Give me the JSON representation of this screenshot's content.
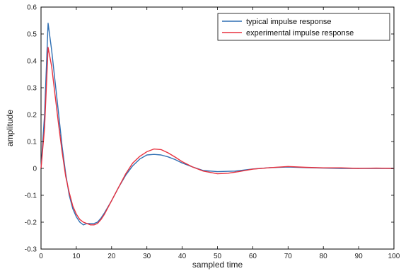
{
  "chart_data": {
    "type": "line",
    "title": "",
    "xlabel": "sampled time",
    "ylabel": "amplitude",
    "xlim": [
      0,
      100
    ],
    "ylim": [
      -0.3,
      0.6
    ],
    "xticks": [
      0,
      10,
      20,
      30,
      40,
      50,
      60,
      70,
      80,
      90,
      100
    ],
    "yticks": [
      -0.3,
      -0.2,
      -0.1,
      0,
      0.1,
      0.2,
      0.3,
      0.4,
      0.5,
      0.6
    ],
    "xtick_labels": [
      "0",
      "10",
      "20",
      "30",
      "40",
      "50",
      "60",
      "70",
      "80",
      "90",
      "100"
    ],
    "ytick_labels": [
      "-0.3",
      "-0.2",
      "-0.1",
      "0",
      "0.1",
      "0.2",
      "0.3",
      "0.4",
      "0.5",
      "0.6"
    ],
    "grid": false,
    "legend_position": "top-right",
    "series": [
      {
        "name": "typical impulse response",
        "color": "#2f6fb3",
        "x": [
          0,
          1,
          2,
          3,
          4,
          5,
          6,
          7,
          8,
          9,
          10,
          11,
          12,
          13,
          14,
          15,
          16,
          17,
          18,
          20,
          22,
          24,
          26,
          28,
          30,
          32,
          34,
          36,
          38,
          40,
          43,
          46,
          50,
          55,
          60,
          65,
          70,
          75,
          80,
          85,
          90,
          95,
          100
        ],
        "y": [
          0,
          0.2,
          0.54,
          0.44,
          0.32,
          0.2,
          0.08,
          -0.02,
          -0.1,
          -0.15,
          -0.18,
          -0.2,
          -0.21,
          -0.205,
          -0.205,
          -0.205,
          -0.2,
          -0.185,
          -0.165,
          -0.12,
          -0.07,
          -0.025,
          0.01,
          0.035,
          0.05,
          0.052,
          0.05,
          0.043,
          0.033,
          0.02,
          0.005,
          -0.008,
          -0.012,
          -0.01,
          -0.002,
          0.003,
          0.005,
          0.003,
          0.001,
          0,
          0,
          0,
          0
        ]
      },
      {
        "name": "experimental impulse response",
        "color": "#e8313e",
        "x": [
          0,
          1,
          2,
          3,
          4,
          5,
          6,
          7,
          8,
          9,
          10,
          11,
          12,
          13,
          14,
          15,
          16,
          17,
          18,
          20,
          22,
          24,
          26,
          28,
          30,
          32,
          34,
          36,
          38,
          40,
          43,
          46,
          50,
          53,
          56,
          60,
          65,
          70,
          75,
          80,
          85,
          90,
          95,
          100
        ],
        "y": [
          0,
          0.15,
          0.45,
          0.38,
          0.27,
          0.16,
          0.06,
          -0.03,
          -0.09,
          -0.14,
          -0.17,
          -0.19,
          -0.2,
          -0.205,
          -0.21,
          -0.21,
          -0.205,
          -0.19,
          -0.17,
          -0.12,
          -0.07,
          -0.02,
          0.02,
          0.045,
          0.062,
          0.072,
          0.07,
          0.058,
          0.042,
          0.025,
          0.005,
          -0.01,
          -0.02,
          -0.018,
          -0.012,
          -0.003,
          0.003,
          0.007,
          0.004,
          0.002,
          0.002,
          0,
          0.001,
          0
        ]
      }
    ]
  }
}
